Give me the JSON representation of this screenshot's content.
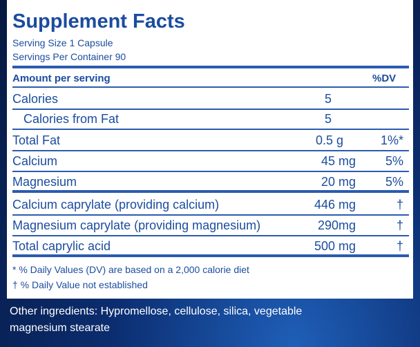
{
  "title": "Supplement Facts",
  "serving_size": "Serving Size 1 Capsule",
  "servings_per_container": "Servings Per Container 90",
  "header": {
    "amount": "Amount per serving",
    "dv": "%DV"
  },
  "rows": [
    {
      "name": "Calories",
      "amount": "5"
    },
    {
      "name": "Calories from Fat",
      "amount": "5"
    },
    {
      "name": "Total Fat",
      "amount": "0.5 g",
      "dv": "1%*"
    },
    {
      "name": "Calcium",
      "amount": "45 mg",
      "dv": "5%"
    },
    {
      "name": "Magnesium",
      "amount": "20 mg",
      "dv": "5%"
    },
    {
      "name": "Calcium caprylate (providing calcium)",
      "amount": "446 mg",
      "dv": "†"
    },
    {
      "name": "Magnesium caprylate (providing magnesium)",
      "amount": "290mg",
      "dv": "†"
    },
    {
      "name": "Total caprylic acid",
      "amount": "500 mg",
      "dv": "†"
    }
  ],
  "footnotes": [
    "* % Daily Values (DV) are based on a 2,000 calorie diet",
    "† % Daily Value not established"
  ],
  "other_ingredients": [
    "Other ingredients: Hypromellose, cellulose, silica, vegetable",
    "magnesium stearate"
  ]
}
